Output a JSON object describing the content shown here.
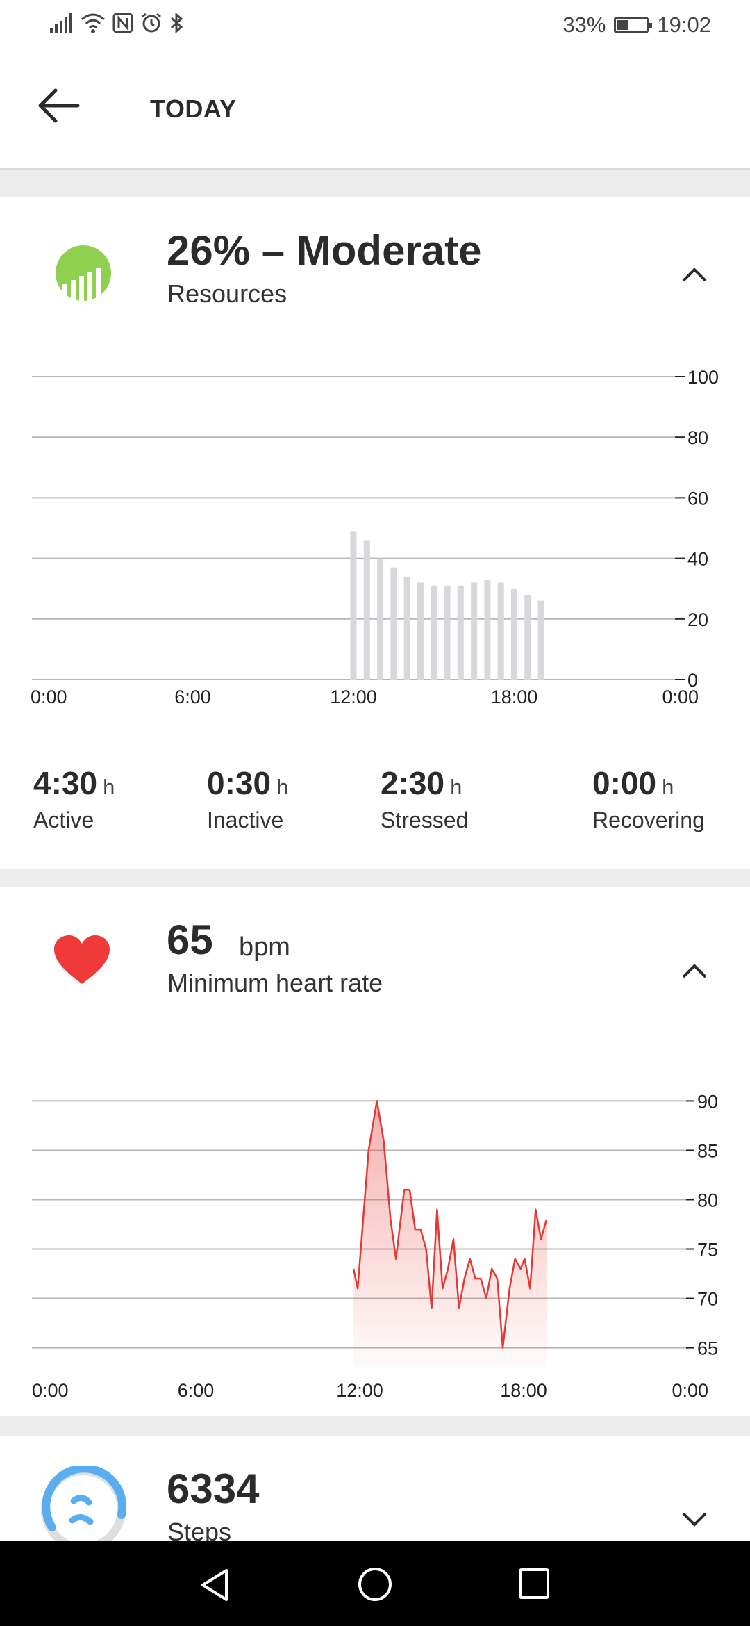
{
  "status_bar": {
    "battery": "33%",
    "time": "19:02",
    "battery_level": 0.33
  },
  "header": {
    "title": "TODAY"
  },
  "resources": {
    "value": "26% – Moderate",
    "label": "Resources",
    "icon_color": "#8fd14f",
    "stats": [
      {
        "value": "4:30",
        "unit": "h",
        "label": "Active"
      },
      {
        "value": "0:30",
        "unit": "h",
        "label": "Inactive"
      },
      {
        "value": "2:30",
        "unit": "h",
        "label": "Stressed"
      },
      {
        "value": "0:00",
        "unit": "h",
        "label": "Recovering"
      }
    ]
  },
  "heart_rate": {
    "value": "65",
    "unit": "bpm",
    "label": "Minimum heart rate",
    "icon_color": "#f03a3a"
  },
  "steps": {
    "value": "6334",
    "label": "Steps",
    "icon_color": "#5aaef0"
  },
  "chart_data": [
    {
      "type": "bar",
      "x_ticks": [
        "0:00",
        "6:00",
        "12:00",
        "18:00",
        "0:00"
      ],
      "y_ticks": [
        0,
        20,
        40,
        60,
        80,
        100
      ],
      "ylim": [
        0,
        100
      ],
      "xlim_hours": [
        0,
        24
      ],
      "bar_color": "#d7d7dc",
      "bars": [
        {
          "hour": 12.0,
          "value": 49
        },
        {
          "hour": 12.5,
          "value": 46
        },
        {
          "hour": 13.0,
          "value": 40
        },
        {
          "hour": 13.5,
          "value": 37
        },
        {
          "hour": 14.0,
          "value": 34
        },
        {
          "hour": 14.5,
          "value": 32
        },
        {
          "hour": 15.0,
          "value": 31
        },
        {
          "hour": 15.5,
          "value": 31
        },
        {
          "hour": 16.0,
          "value": 31
        },
        {
          "hour": 16.5,
          "value": 32
        },
        {
          "hour": 17.0,
          "value": 33
        },
        {
          "hour": 17.5,
          "value": 32
        },
        {
          "hour": 18.0,
          "value": 30
        },
        {
          "hour": 18.5,
          "value": 28
        },
        {
          "hour": 19.0,
          "value": 26
        }
      ]
    },
    {
      "type": "area",
      "x_ticks": [
        "0:00",
        "6:00",
        "12:00",
        "18:00",
        "0:00"
      ],
      "y_ticks": [
        65,
        70,
        75,
        80,
        85,
        90
      ],
      "ylim": [
        63,
        92
      ],
      "xlim_hours": [
        0,
        24
      ],
      "line_color": "#e53935",
      "points": [
        [
          11.75,
          73
        ],
        [
          11.9,
          71
        ],
        [
          12.3,
          85
        ],
        [
          12.6,
          90
        ],
        [
          12.85,
          86
        ],
        [
          13.1,
          78
        ],
        [
          13.3,
          74
        ],
        [
          13.6,
          81
        ],
        [
          13.8,
          81
        ],
        [
          14.0,
          77
        ],
        [
          14.2,
          77
        ],
        [
          14.4,
          75
        ],
        [
          14.6,
          69
        ],
        [
          14.8,
          79
        ],
        [
          15.0,
          71
        ],
        [
          15.2,
          73
        ],
        [
          15.4,
          76
        ],
        [
          15.6,
          69
        ],
        [
          15.8,
          72
        ],
        [
          16.0,
          74
        ],
        [
          16.2,
          72
        ],
        [
          16.4,
          72
        ],
        [
          16.6,
          70
        ],
        [
          16.8,
          73
        ],
        [
          17.0,
          72
        ],
        [
          17.2,
          65
        ],
        [
          17.45,
          71
        ],
        [
          17.65,
          74
        ],
        [
          17.85,
          73
        ],
        [
          18.0,
          74
        ],
        [
          18.2,
          71
        ],
        [
          18.4,
          79
        ],
        [
          18.6,
          76
        ],
        [
          18.8,
          78
        ]
      ]
    }
  ]
}
